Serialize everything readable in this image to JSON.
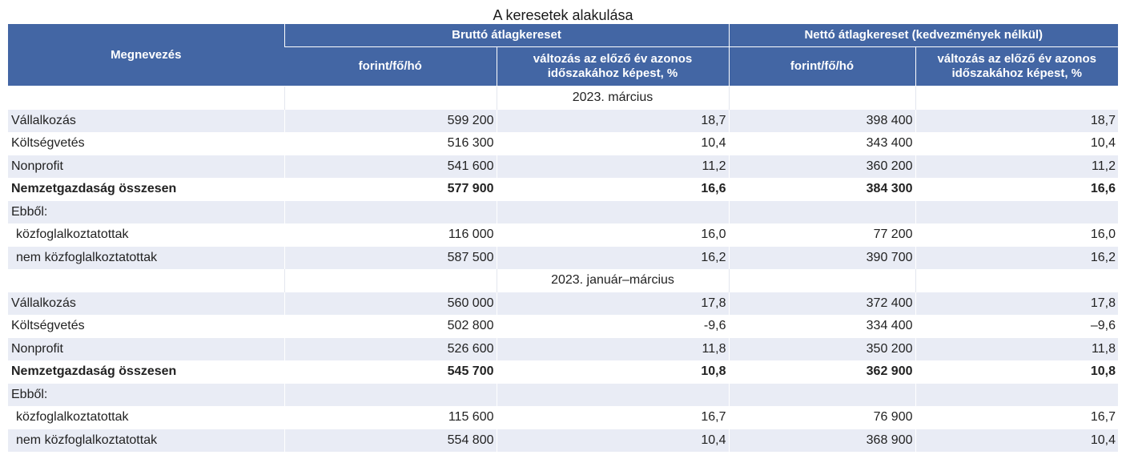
{
  "title": "A keresetek alakulása",
  "header": {
    "name_col": "Megnevezés",
    "group1": "Bruttó átlagkereset",
    "group2": "Nettó átlagkereset (kedvezmények nélkül)",
    "sub_amount": "forint/fő/hó",
    "sub_change": "változás az előző év azonos időszakához képest, %"
  },
  "sections": [
    {
      "label": "2023. március",
      "rows": [
        {
          "name": "Vállalkozás",
          "b_amt": "599 200",
          "b_chg": "18,7",
          "n_amt": "398 400",
          "n_chg": "18,7"
        },
        {
          "name": "Költségvetés",
          "b_amt": "516 300",
          "b_chg": "10,4",
          "n_amt": "343 400",
          "n_chg": "10,4"
        },
        {
          "name": "Nonprofit",
          "b_amt": "541 600",
          "b_chg": "11,2",
          "n_amt": "360 200",
          "n_chg": "11,2"
        },
        {
          "name": "Nemzetgazdaság összesen",
          "b_amt": "577 900",
          "b_chg": "16,6",
          "n_amt": "384 300",
          "n_chg": "16,6"
        },
        {
          "name": "Ebből:",
          "b_amt": "",
          "b_chg": "",
          "n_amt": "",
          "n_chg": ""
        },
        {
          "name": "közfoglalkoztatottak",
          "b_amt": "116 000",
          "b_chg": "16,0",
          "n_amt": "77 200",
          "n_chg": "16,0"
        },
        {
          "name": "nem közfoglalkoztatottak",
          "b_amt": "587 500",
          "b_chg": "16,2",
          "n_amt": "390 700",
          "n_chg": "16,2"
        }
      ]
    },
    {
      "label": "2023. január–március",
      "rows": [
        {
          "name": "Vállalkozás",
          "b_amt": "560 000",
          "b_chg": "17,8",
          "n_amt": "372 400",
          "n_chg": "17,8"
        },
        {
          "name": "Költségvetés",
          "b_amt": "502 800",
          "b_chg": "-9,6",
          "n_amt": "334 400",
          "n_chg": "–9,6"
        },
        {
          "name": "Nonprofit",
          "b_amt": "526 600",
          "b_chg": "11,8",
          "n_amt": "350 200",
          "n_chg": "11,8"
        },
        {
          "name": "Nemzetgazdaság összesen",
          "b_amt": "545 700",
          "b_chg": "10,8",
          "n_amt": "362 900",
          "n_chg": "10,8"
        },
        {
          "name": "Ebből:",
          "b_amt": "",
          "b_chg": "",
          "n_amt": "",
          "n_chg": ""
        },
        {
          "name": "közfoglalkoztatottak",
          "b_amt": "115 600",
          "b_chg": "16,7",
          "n_amt": "76 900",
          "n_chg": "16,7"
        },
        {
          "name": "nem közfoglalkoztatottak",
          "b_amt": "554 800",
          "b_chg": "10,4",
          "n_amt": "368 900",
          "n_chg": "10,4"
        }
      ]
    }
  ]
}
